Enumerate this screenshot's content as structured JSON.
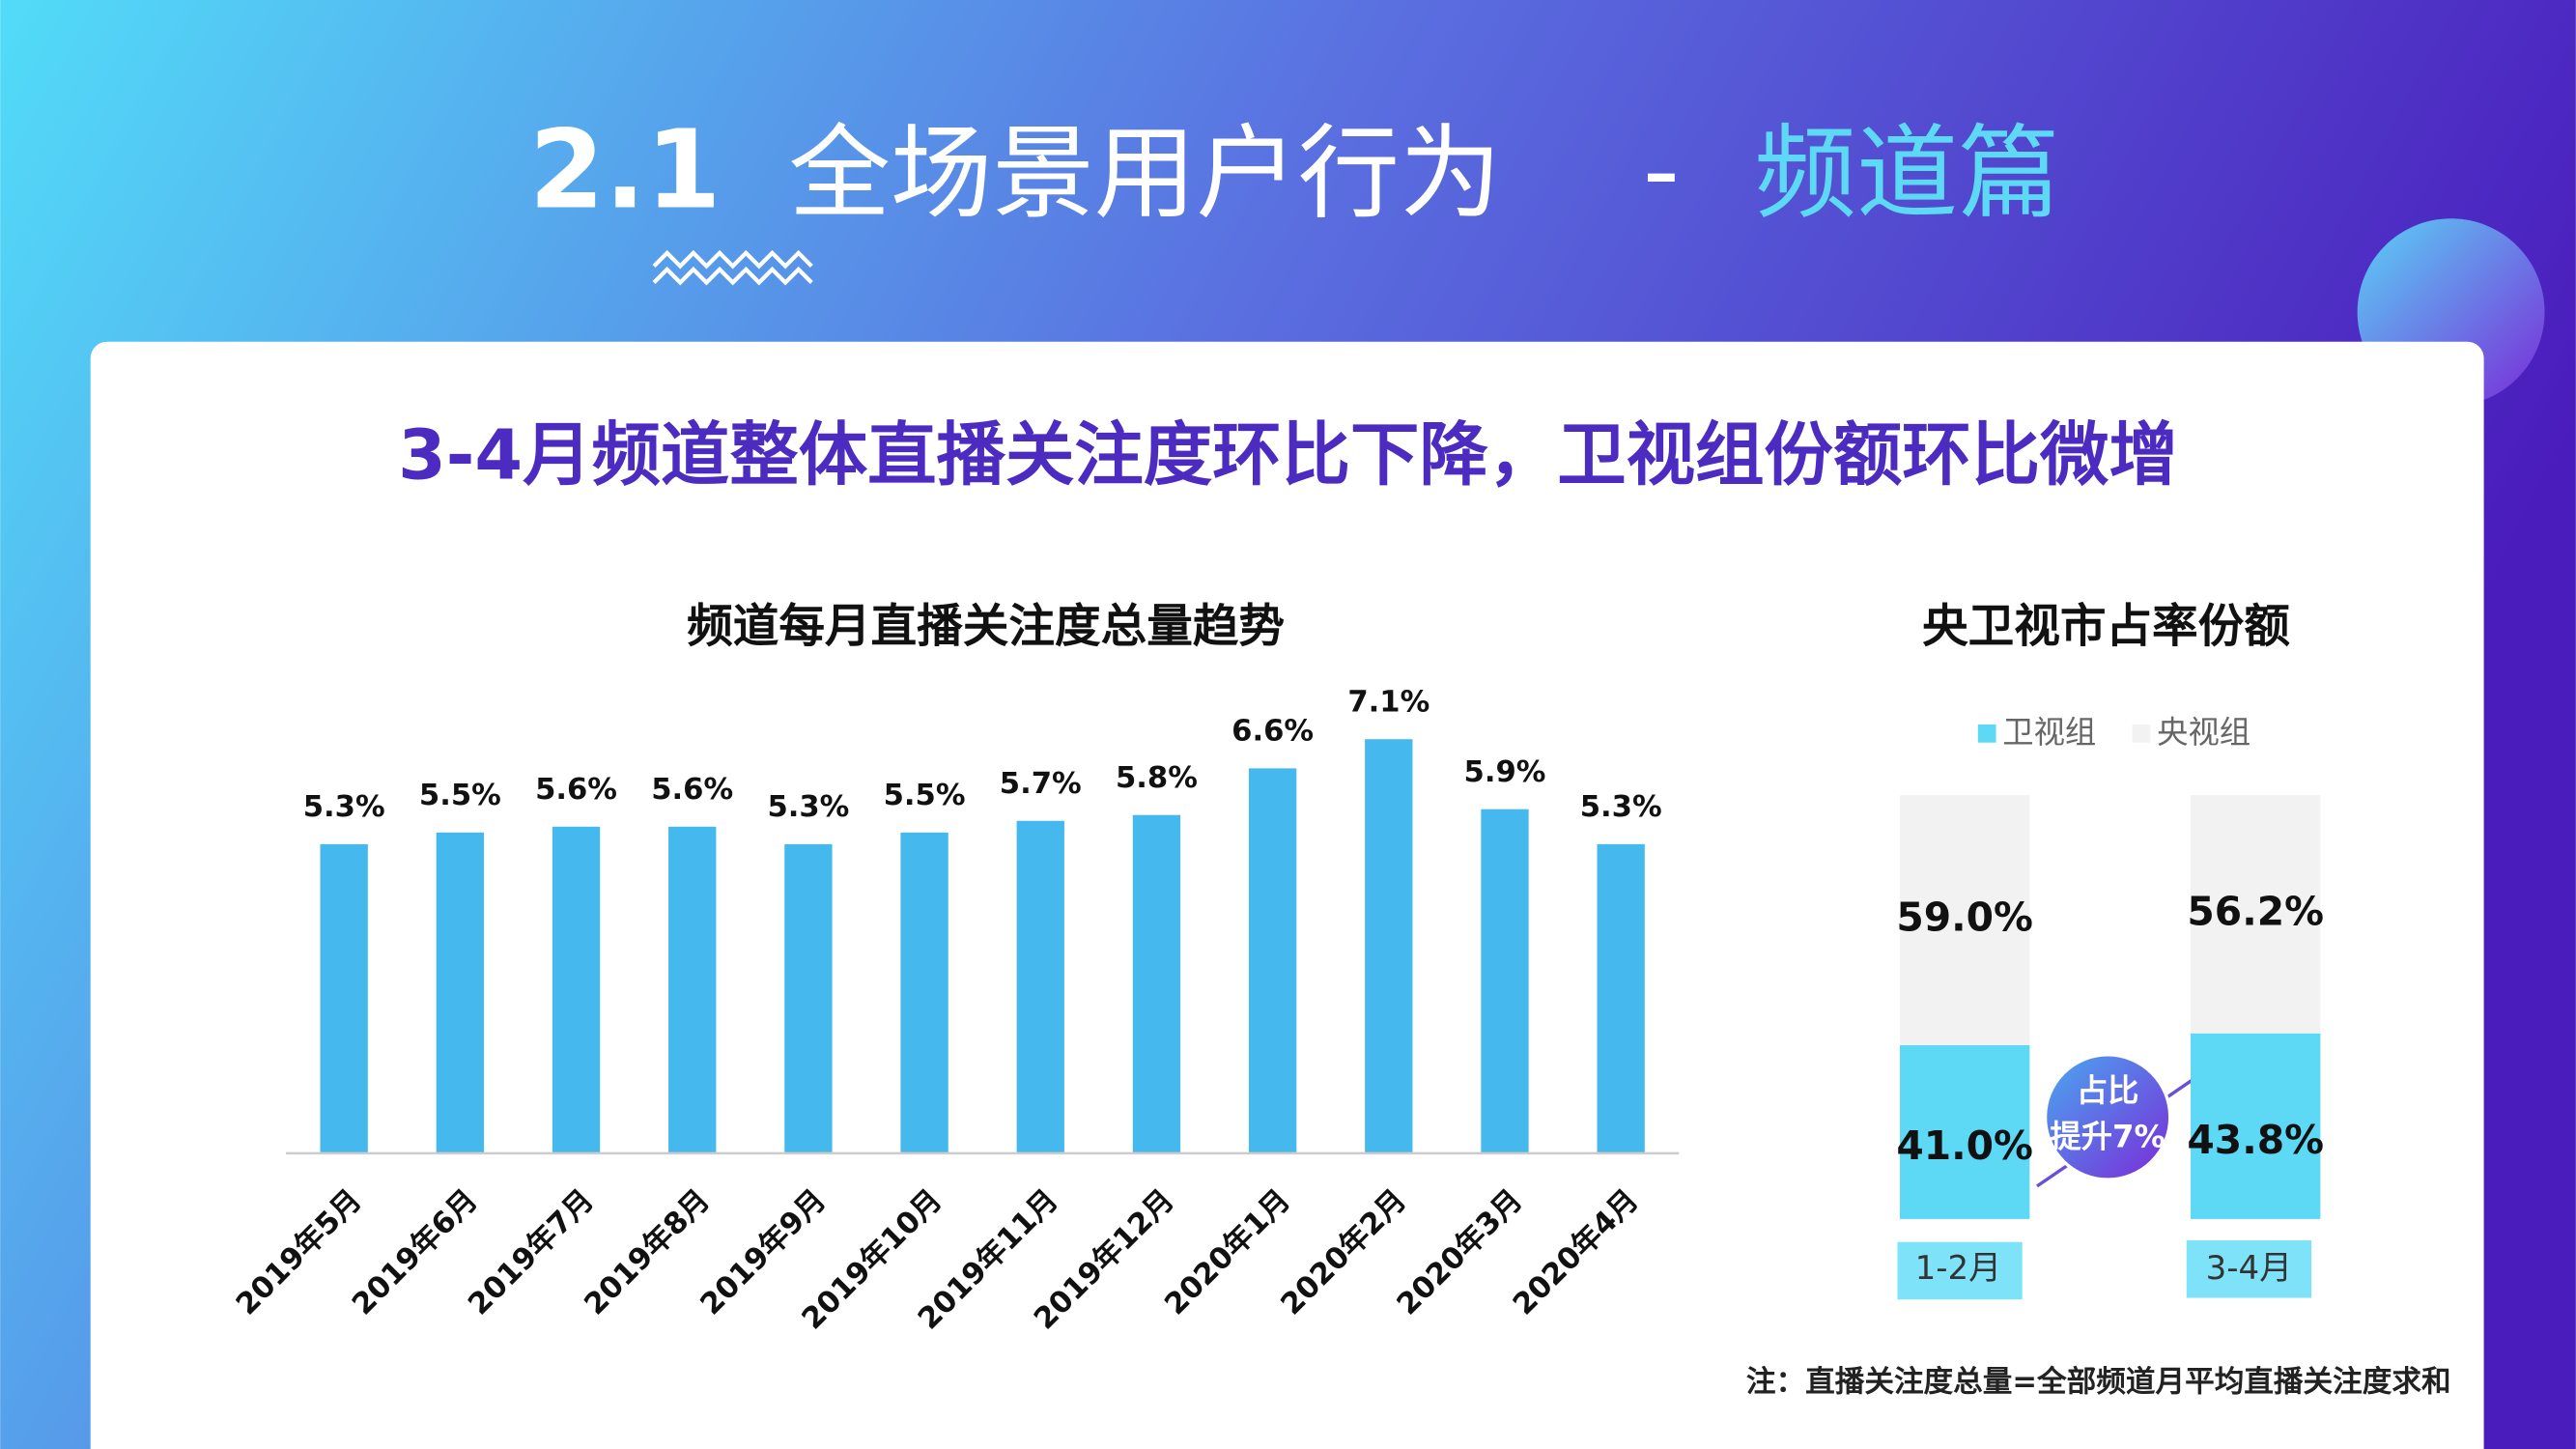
{
  "header": {
    "number": "2.1",
    "title": "全场景用户行为",
    "separator": "-",
    "section": "频道篇"
  },
  "headline": "3-4月频道整体直播关注度环比下降，卫视组份额环比微增",
  "note": "注：直播关注度总量=全部频道月平均直播关注度求和",
  "chart_data": [
    {
      "type": "bar",
      "title": "频道每月直播关注度总量趋势",
      "categories": [
        "2019年5月",
        "2019年6月",
        "2019年7月",
        "2019年8月",
        "2019年9月",
        "2019年10月",
        "2019年11月",
        "2019年12月",
        "2020年1月",
        "2020年2月",
        "2020年3月",
        "2020年4月"
      ],
      "values": [
        5.3,
        5.5,
        5.6,
        5.6,
        5.3,
        5.5,
        5.7,
        5.8,
        6.6,
        7.1,
        5.9,
        5.3
      ],
      "value_labels": [
        "5.3%",
        "5.5%",
        "5.6%",
        "5.6%",
        "5.3%",
        "5.5%",
        "5.7%",
        "5.8%",
        "6.6%",
        "7.1%",
        "5.9%",
        "5.3%"
      ],
      "color": "#45b8ee",
      "ylim": [
        0,
        8
      ]
    },
    {
      "type": "stacked_bar",
      "title": "央卫视市占率份额",
      "categories": [
        "1-2月",
        "3-4月"
      ],
      "series": [
        {
          "name": "卫视组",
          "color": "#5dd9f5",
          "values": [
            41.0,
            43.8
          ],
          "value_labels": [
            "41.0%",
            "43.8%"
          ]
        },
        {
          "name": "央视组",
          "color": "#f2f2f2",
          "values": [
            59.0,
            56.2
          ],
          "value_labels": [
            "59.0%",
            "56.2%"
          ]
        }
      ],
      "ylim": [
        0,
        100
      ],
      "legend": "top",
      "annotation": [
        "占比",
        "提升7%"
      ]
    }
  ]
}
